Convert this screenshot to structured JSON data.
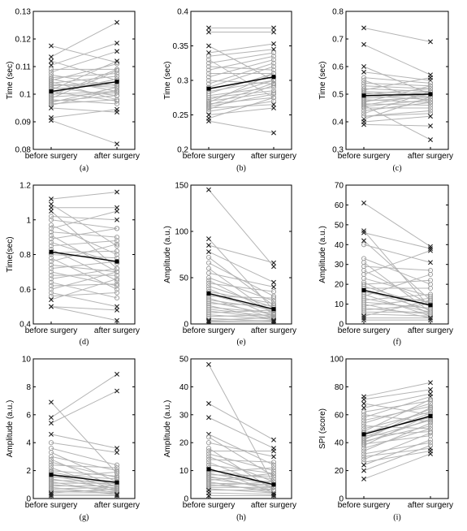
{
  "chart_data": [
    {
      "type": "line",
      "panel": "a",
      "caption": "(a)",
      "categories": [
        "before surgery",
        "after surgery"
      ],
      "ylabel": "Time (sec)",
      "ylim": [
        0.08,
        0.13
      ],
      "yticks": [
        "0.08",
        "0.09",
        "0.1",
        "0.11",
        "0.12",
        "0.13"
      ],
      "mean": [
        0.101,
        0.1045
      ],
      "subjects_before": [
        0.1175,
        0.1135,
        0.112,
        0.1105,
        0.109,
        0.108,
        0.107,
        0.106,
        0.1055,
        0.105,
        0.1045,
        0.104,
        0.1035,
        0.103,
        0.1025,
        0.102,
        0.1015,
        0.101,
        0.1005,
        0.1,
        0.0995,
        0.099,
        0.0985,
        0.098,
        0.0975,
        0.097,
        0.0965,
        0.096,
        0.095,
        0.0915,
        0.0905
      ],
      "subjects_after": [
        0.1115,
        0.126,
        0.105,
        0.1185,
        0.109,
        0.1155,
        0.103,
        0.1075,
        0.101,
        0.111,
        0.098,
        0.1065,
        0.1025,
        0.1045,
        0.0995,
        0.1035,
        0.112,
        0.0975,
        0.1055,
        0.101,
        0.109,
        0.1005,
        0.1085,
        0.0965,
        0.0995,
        0.1025,
        0.098,
        0.1015,
        0.0935,
        0.0945,
        0.082
      ]
    },
    {
      "type": "line",
      "panel": "b",
      "caption": "(b)",
      "categories": [
        "before surgery",
        "after surgery"
      ],
      "ylabel": "Time (sec)",
      "ylim": [
        0.2,
        0.4
      ],
      "yticks": [
        "0.2",
        "0.25",
        "0.3",
        "0.35",
        "0.4"
      ],
      "mean": [
        0.288,
        0.305
      ],
      "subjects_before": [
        0.376,
        0.37,
        0.35,
        0.34,
        0.335,
        0.33,
        0.325,
        0.32,
        0.315,
        0.31,
        0.305,
        0.3,
        0.295,
        0.29,
        0.287,
        0.284,
        0.281,
        0.278,
        0.275,
        0.272,
        0.27,
        0.268,
        0.266,
        0.264,
        0.262,
        0.26,
        0.258,
        0.255,
        0.25,
        0.245,
        0.241
      ],
      "subjects_after": [
        0.376,
        0.37,
        0.3,
        0.353,
        0.345,
        0.275,
        0.34,
        0.315,
        0.335,
        0.31,
        0.33,
        0.295,
        0.325,
        0.32,
        0.305,
        0.3,
        0.31,
        0.29,
        0.285,
        0.3,
        0.282,
        0.31,
        0.275,
        0.296,
        0.28,
        0.265,
        0.293,
        0.27,
        0.26,
        0.275,
        0.224
      ]
    },
    {
      "type": "line",
      "panel": "c",
      "caption": "(c)",
      "categories": [
        "before surgery",
        "after surgery"
      ],
      "ylabel": "Time (sec)",
      "ylim": [
        0.3,
        0.8
      ],
      "yticks": [
        "0.3",
        "0.4",
        "0.5",
        "0.6",
        "0.7",
        "0.8"
      ],
      "mean": [
        0.495,
        0.5
      ],
      "subjects_before": [
        0.74,
        0.68,
        0.6,
        0.58,
        0.56,
        0.55,
        0.54,
        0.53,
        0.52,
        0.515,
        0.51,
        0.505,
        0.5,
        0.495,
        0.49,
        0.485,
        0.48,
        0.475,
        0.47,
        0.465,
        0.46,
        0.455,
        0.45,
        0.44,
        0.43,
        0.42,
        0.41,
        0.4,
        0.39,
        0.42,
        0.46
      ],
      "subjects_after": [
        0.69,
        0.57,
        0.5,
        0.55,
        0.54,
        0.47,
        0.53,
        0.52,
        0.51,
        0.56,
        0.5,
        0.49,
        0.52,
        0.48,
        0.51,
        0.5,
        0.47,
        0.49,
        0.53,
        0.46,
        0.5,
        0.48,
        0.45,
        0.47,
        0.51,
        0.43,
        0.49,
        0.42,
        0.385,
        0.44,
        0.335
      ]
    },
    {
      "type": "line",
      "panel": "d",
      "caption": "(d)",
      "categories": [
        "before surgery",
        "after surgery"
      ],
      "ylabel": "Time(sec)",
      "ylim": [
        0.4,
        1.2
      ],
      "yticks": [
        "0.4",
        "0.6",
        "0.8",
        "1",
        "1.2"
      ],
      "mean": [
        0.815,
        0.76
      ],
      "subjects_before": [
        1.12,
        1.09,
        1.07,
        1.05,
        1.02,
        1.0,
        0.97,
        0.95,
        0.93,
        0.91,
        0.89,
        0.87,
        0.85,
        0.83,
        0.81,
        0.8,
        0.78,
        0.76,
        0.74,
        0.72,
        0.7,
        0.68,
        0.66,
        0.64,
        0.62,
        0.6,
        0.58,
        0.56,
        0.54,
        0.5,
        0.5
      ],
      "subjects_after": [
        1.16,
        0.85,
        1.07,
        0.72,
        1.0,
        0.95,
        0.8,
        1.05,
        0.9,
        0.7,
        0.95,
        0.75,
        0.88,
        0.65,
        0.82,
        0.78,
        0.6,
        0.86,
        0.7,
        0.76,
        0.62,
        0.68,
        0.72,
        0.55,
        0.63,
        0.7,
        0.5,
        0.58,
        0.66,
        0.48,
        0.42
      ]
    },
    {
      "type": "line",
      "panel": "e",
      "caption": "(e)",
      "categories": [
        "before surgery",
        "after surgery"
      ],
      "ylabel": "Amplitude (a.u.)",
      "ylim": [
        0,
        150
      ],
      "yticks": [
        "0",
        "50",
        "100",
        "150"
      ],
      "mean": [
        33,
        16
      ],
      "subjects_before": [
        145,
        92,
        85,
        78,
        72,
        66,
        60,
        55,
        50,
        47,
        44,
        41,
        38,
        35,
        32,
        30,
        28,
        26,
        24,
        22,
        20,
        18,
        16,
        14,
        12,
        10,
        8,
        6,
        4,
        3,
        2
      ],
      "subjects_after": [
        62,
        15,
        66,
        45,
        20,
        30,
        10,
        40,
        25,
        12,
        35,
        18,
        8,
        22,
        14,
        28,
        6,
        16,
        10,
        20,
        4,
        12,
        8,
        6,
        15,
        5,
        10,
        3,
        7,
        4,
        2
      ]
    },
    {
      "type": "line",
      "panel": "f",
      "caption": "(f)",
      "categories": [
        "before surgery",
        "after surgery"
      ],
      "ylabel": "Amplitude (a.u.)",
      "ylim": [
        0,
        70
      ],
      "yticks": [
        "0",
        "10",
        "20",
        "30",
        "40",
        "50",
        "60",
        "70"
      ],
      "mean": [
        17,
        9.5
      ],
      "subjects_before": [
        61,
        47,
        46,
        42,
        40,
        33,
        31,
        29,
        27,
        25,
        23,
        21,
        20,
        19,
        18,
        17,
        16,
        15,
        14,
        13,
        12,
        11,
        10,
        9,
        8,
        7,
        6,
        5,
        4,
        3,
        2
      ],
      "subjects_after": [
        39,
        8,
        38,
        12,
        31,
        20,
        6,
        27,
        10,
        37,
        14,
        5,
        22,
        9,
        18,
        7,
        11,
        4,
        25,
        6,
        15,
        8,
        3,
        13,
        5,
        10,
        6,
        4,
        12,
        3,
        2
      ]
    },
    {
      "type": "line",
      "panel": "g",
      "caption": "(g)",
      "categories": [
        "before surgery",
        "after surgery"
      ],
      "ylabel": "Amplitude (a.u.)",
      "ylim": [
        0,
        10
      ],
      "yticks": [
        "0",
        "2",
        "4",
        "6",
        "8",
        "10"
      ],
      "mean": [
        1.7,
        1.15
      ],
      "subjects_before": [
        6.9,
        5.8,
        5.4,
        4.6,
        4.0,
        3.6,
        3.3,
        3.0,
        2.8,
        2.6,
        2.4,
        2.2,
        2.0,
        1.9,
        1.8,
        1.7,
        1.6,
        1.5,
        1.4,
        1.3,
        1.2,
        1.1,
        1.0,
        0.9,
        0.8,
        0.7,
        0.6,
        0.5,
        0.4,
        0.3,
        0.2
      ],
      "subjects_after": [
        1.8,
        8.9,
        7.7,
        3.6,
        3.3,
        2.4,
        1.2,
        2.0,
        0.8,
        1.5,
        2.2,
        0.6,
        1.6,
        1.0,
        0.5,
        1.4,
        0.9,
        1.9,
        0.7,
        1.2,
        0.4,
        1.1,
        0.6,
        0.9,
        0.3,
        0.8,
        0.5,
        0.4,
        0.7,
        0.3,
        0.2
      ]
    },
    {
      "type": "line",
      "panel": "h",
      "caption": "(h)",
      "categories": [
        "before surgery",
        "after surgery"
      ],
      "ylabel": "Amplitude (a.u.)",
      "ylim": [
        0,
        50
      ],
      "yticks": [
        "0",
        "10",
        "20",
        "30",
        "40",
        "50"
      ],
      "mean": [
        10.5,
        5
      ],
      "subjects_before": [
        48,
        34,
        29,
        23,
        22,
        20,
        18,
        17,
        16,
        15,
        14,
        13,
        12,
        11,
        10,
        9.5,
        9,
        8.5,
        8,
        7.5,
        7,
        6.5,
        6,
        5.5,
        5,
        4.5,
        4,
        3.5,
        3,
        2,
        1
      ],
      "subjects_after": [
        5,
        21,
        18,
        12,
        8,
        15,
        3,
        17,
        10,
        6,
        13,
        4,
        9,
        2,
        7,
        11,
        5,
        8,
        3,
        6,
        4,
        9,
        2,
        5,
        3,
        6,
        4,
        2,
        3,
        1.5,
        1
      ]
    },
    {
      "type": "line",
      "panel": "i",
      "caption": "(i)",
      "categories": [
        "before surgery",
        "after surgery"
      ],
      "ylabel": "SPI (score)",
      "ylim": [
        0,
        100
      ],
      "yticks": [
        "0",
        "20",
        "40",
        "60",
        "80",
        "100"
      ],
      "mean": [
        46,
        59
      ],
      "subjects_before": [
        73,
        71,
        68,
        65,
        62,
        60,
        58,
        56,
        54,
        52,
        50,
        48,
        47,
        46,
        45,
        44,
        43,
        42,
        41,
        40,
        39,
        38,
        36,
        34,
        32,
        30,
        28,
        26,
        24,
        20,
        14
      ],
      "subjects_after": [
        83,
        78,
        60,
        75,
        70,
        55,
        73,
        66,
        68,
        50,
        62,
        71,
        58,
        64,
        48,
        61,
        56,
        65,
        52,
        57,
        45,
        60,
        50,
        54,
        40,
        36,
        47,
        34,
        42,
        38,
        32
      ]
    }
  ]
}
